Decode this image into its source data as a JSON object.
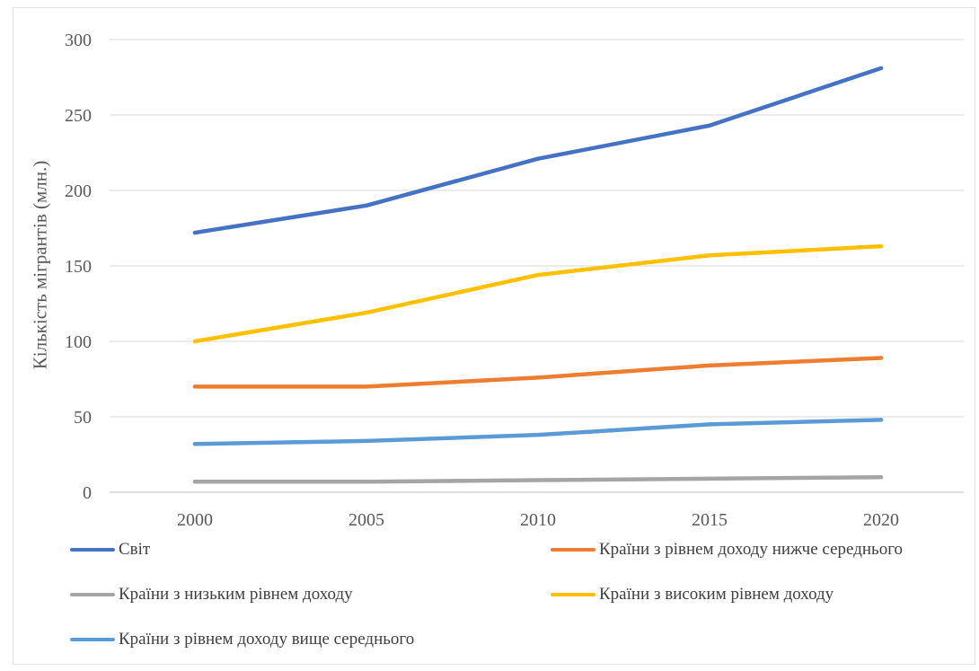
{
  "chart_data": {
    "type": "line",
    "title": "",
    "xlabel": "",
    "ylabel": "Кількість мігрантів (млн.)",
    "categories": [
      "2000",
      "2005",
      "2010",
      "2015",
      "2020"
    ],
    "ylim": [
      0,
      300
    ],
    "yticks": [
      0,
      50,
      100,
      150,
      200,
      250,
      300
    ],
    "grid": "horizontal",
    "legend_position": "bottom",
    "series": [
      {
        "name": "Світ",
        "color": "#4472C4",
        "values": [
          172,
          190,
          221,
          243,
          281
        ]
      },
      {
        "name": "Країни з рівнем доходу нижче середнього",
        "color": "#ED7D31",
        "values": [
          70,
          70,
          76,
          84,
          89
        ]
      },
      {
        "name": "Країни з низьким рівнем доходу",
        "color": "#A5A5A5",
        "values": [
          7,
          7,
          8,
          9,
          10
        ]
      },
      {
        "name": "Країни з високим рівнем доходу",
        "color": "#FFC000",
        "values": [
          100,
          119,
          144,
          157,
          163
        ]
      },
      {
        "name": "Країни з рівнем доходу вище середнього",
        "color": "#5B9BD5",
        "values": [
          32,
          34,
          38,
          45,
          48
        ]
      }
    ]
  }
}
